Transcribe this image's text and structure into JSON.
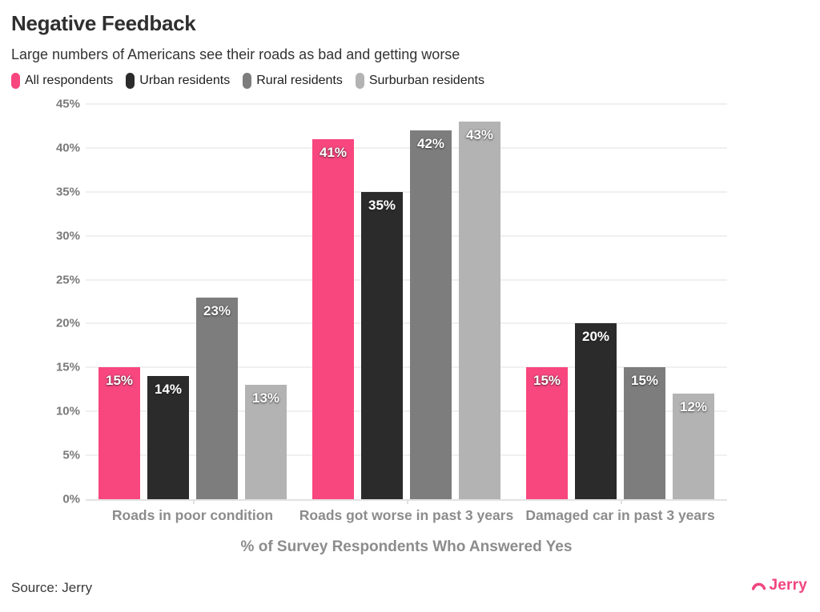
{
  "header": {
    "title": "Negative Feedback",
    "subtitle": "Large numbers of Americans see their roads as bad and getting worse"
  },
  "chart_data": {
    "type": "bar",
    "title": "Negative Feedback",
    "subtitle": "Large numbers of Americans see their roads as bad and getting worse",
    "categories": [
      "Roads in poor condition",
      "Roads got worse in past 3 years",
      "Damaged car in past 3 years"
    ],
    "series": [
      {
        "name": "All respondents",
        "color": "#f8467f",
        "values": [
          15,
          41,
          15
        ]
      },
      {
        "name": "Urban residents",
        "color": "#2b2b2b",
        "values": [
          14,
          35,
          20
        ]
      },
      {
        "name": "Rural residents",
        "color": "#7d7d7d",
        "values": [
          23,
          42,
          15
        ]
      },
      {
        "name": "Surburban residents",
        "color": "#b3b3b3",
        "values": [
          13,
          43,
          12
        ]
      }
    ],
    "value_labels": [
      [
        "15%",
        "41%",
        "15%"
      ],
      [
        "14%",
        "35%",
        "20%"
      ],
      [
        "23%",
        "42%",
        "15%"
      ],
      [
        "13%",
        "43%",
        "12%"
      ]
    ],
    "xlabel": "% of Survey Respondents Who Answered Yes",
    "ylabel": "",
    "ylim": [
      0,
      45
    ],
    "ytick_step": 5,
    "ytick_labels": [
      "0%",
      "5%",
      "10%",
      "15%",
      "20%",
      "25%",
      "30%",
      "35%",
      "40%",
      "45%"
    ],
    "grid": true,
    "legend_position": "top",
    "value_suffix": "%"
  },
  "footer": {
    "source": "Source: Jerry",
    "brand": "Jerry",
    "brand_color": "#f0457e"
  }
}
